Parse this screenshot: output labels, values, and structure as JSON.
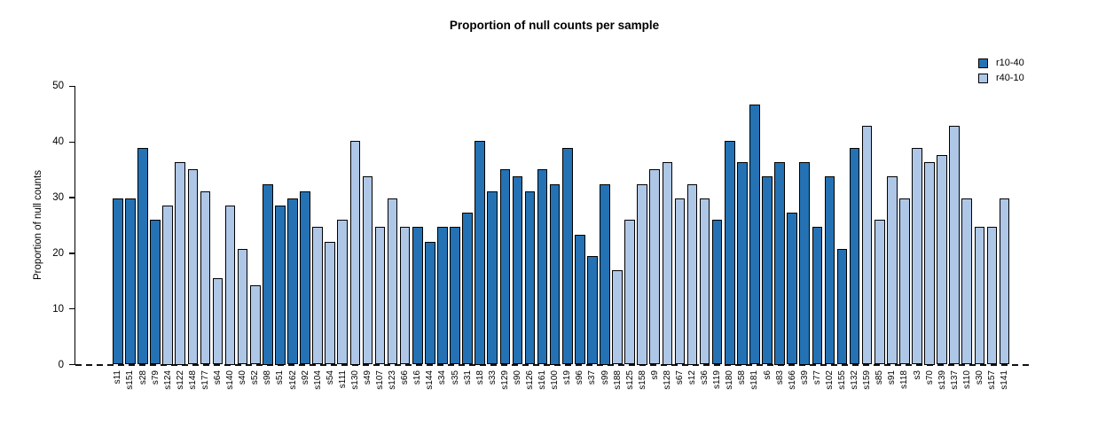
{
  "chart_data": {
    "type": "bar",
    "title": "Proportion of null counts per sample",
    "xlabel": "",
    "ylabel": "Proportion of null counts",
    "ylim": [
      0,
      50
    ],
    "yticks": [
      0,
      10,
      20,
      30,
      40,
      50
    ],
    "grid": false,
    "zero_line_style": "dashed",
    "x_tick_rotation": 90,
    "legend_position": "top-right",
    "legend_labels": [
      "r10-40",
      "r40-10"
    ],
    "series_colors": {
      "r10-40": "#2472B4",
      "r40-10": "#AFC7E7"
    },
    "bars": [
      {
        "label": "s11",
        "value": 29.87,
        "series": "r10-40"
      },
      {
        "label": "s151",
        "value": 29.87,
        "series": "r10-40"
      },
      {
        "label": "s28",
        "value": 38.96,
        "series": "r10-40"
      },
      {
        "label": "s79",
        "value": 25.97,
        "series": "r10-40"
      },
      {
        "label": "s124",
        "value": 28.57,
        "series": "r40-10"
      },
      {
        "label": "s122",
        "value": 36.36,
        "series": "r40-10"
      },
      {
        "label": "s148",
        "value": 35.06,
        "series": "r40-10"
      },
      {
        "label": "s177",
        "value": 31.17,
        "series": "r40-10"
      },
      {
        "label": "s64",
        "value": 15.58,
        "series": "r40-10"
      },
      {
        "label": "s140",
        "value": 28.57,
        "series": "r40-10"
      },
      {
        "label": "s40",
        "value": 20.78,
        "series": "r40-10"
      },
      {
        "label": "s52",
        "value": 14.29,
        "series": "r40-10"
      },
      {
        "label": "s98",
        "value": 32.47,
        "series": "r10-40"
      },
      {
        "label": "s51",
        "value": 28.57,
        "series": "r10-40"
      },
      {
        "label": "s162",
        "value": 29.87,
        "series": "r10-40"
      },
      {
        "label": "s92",
        "value": 31.17,
        "series": "r10-40"
      },
      {
        "label": "s104",
        "value": 24.68,
        "series": "r40-10"
      },
      {
        "label": "s54",
        "value": 22.08,
        "series": "r40-10"
      },
      {
        "label": "s111",
        "value": 25.97,
        "series": "r40-10"
      },
      {
        "label": "s130",
        "value": 40.26,
        "series": "r40-10"
      },
      {
        "label": "s49",
        "value": 33.77,
        "series": "r40-10"
      },
      {
        "label": "s107",
        "value": 24.68,
        "series": "r40-10"
      },
      {
        "label": "s123",
        "value": 29.87,
        "series": "r40-10"
      },
      {
        "label": "s66",
        "value": 24.68,
        "series": "r40-10"
      },
      {
        "label": "s16",
        "value": 24.68,
        "series": "r10-40"
      },
      {
        "label": "s144",
        "value": 22.08,
        "series": "r10-40"
      },
      {
        "label": "s34",
        "value": 24.68,
        "series": "r10-40"
      },
      {
        "label": "s35",
        "value": 24.68,
        "series": "r10-40"
      },
      {
        "label": "s31",
        "value": 27.27,
        "series": "r10-40"
      },
      {
        "label": "s18",
        "value": 40.26,
        "series": "r10-40"
      },
      {
        "label": "s33",
        "value": 31.17,
        "series": "r10-40"
      },
      {
        "label": "s129",
        "value": 35.06,
        "series": "r10-40"
      },
      {
        "label": "s90",
        "value": 33.77,
        "series": "r10-40"
      },
      {
        "label": "s126",
        "value": 31.17,
        "series": "r10-40"
      },
      {
        "label": "s161",
        "value": 35.06,
        "series": "r10-40"
      },
      {
        "label": "s100",
        "value": 32.47,
        "series": "r10-40"
      },
      {
        "label": "s19",
        "value": 38.96,
        "series": "r10-40"
      },
      {
        "label": "s96",
        "value": 23.38,
        "series": "r10-40"
      },
      {
        "label": "s37",
        "value": 19.48,
        "series": "r10-40"
      },
      {
        "label": "s99",
        "value": 32.47,
        "series": "r10-40"
      },
      {
        "label": "s188",
        "value": 16.88,
        "series": "r40-10"
      },
      {
        "label": "s125",
        "value": 25.97,
        "series": "r40-10"
      },
      {
        "label": "s158",
        "value": 32.47,
        "series": "r40-10"
      },
      {
        "label": "s9",
        "value": 35.06,
        "series": "r40-10"
      },
      {
        "label": "s128",
        "value": 36.36,
        "series": "r40-10"
      },
      {
        "label": "s67",
        "value": 29.87,
        "series": "r40-10"
      },
      {
        "label": "s12",
        "value": 32.47,
        "series": "r40-10"
      },
      {
        "label": "s36",
        "value": 29.87,
        "series": "r40-10"
      },
      {
        "label": "s119",
        "value": 25.97,
        "series": "r10-40"
      },
      {
        "label": "s180",
        "value": 40.26,
        "series": "r10-40"
      },
      {
        "label": "s58",
        "value": 36.36,
        "series": "r10-40"
      },
      {
        "label": "s181",
        "value": 46.75,
        "series": "r10-40"
      },
      {
        "label": "s6",
        "value": 33.77,
        "series": "r10-40"
      },
      {
        "label": "s83",
        "value": 36.36,
        "series": "r10-40"
      },
      {
        "label": "s166",
        "value": 27.27,
        "series": "r10-40"
      },
      {
        "label": "s39",
        "value": 36.36,
        "series": "r10-40"
      },
      {
        "label": "s77",
        "value": 24.68,
        "series": "r10-40"
      },
      {
        "label": "s102",
        "value": 33.77,
        "series": "r10-40"
      },
      {
        "label": "s155",
        "value": 20.78,
        "series": "r10-40"
      },
      {
        "label": "s132",
        "value": 38.96,
        "series": "r10-40"
      },
      {
        "label": "s159",
        "value": 42.86,
        "series": "r40-10"
      },
      {
        "label": "s85",
        "value": 25.97,
        "series": "r40-10"
      },
      {
        "label": "s91",
        "value": 33.77,
        "series": "r40-10"
      },
      {
        "label": "s118",
        "value": 29.87,
        "series": "r40-10"
      },
      {
        "label": "s3",
        "value": 38.96,
        "series": "r40-10"
      },
      {
        "label": "s70",
        "value": 36.36,
        "series": "r40-10"
      },
      {
        "label": "s139",
        "value": 37.66,
        "series": "r40-10"
      },
      {
        "label": "s137",
        "value": 42.86,
        "series": "r40-10"
      },
      {
        "label": "s110",
        "value": 29.87,
        "series": "r40-10"
      },
      {
        "label": "s30",
        "value": 24.68,
        "series": "r40-10"
      },
      {
        "label": "s157",
        "value": 24.68,
        "series": "r40-10"
      },
      {
        "label": "s141",
        "value": 29.87,
        "series": "r40-10"
      }
    ]
  }
}
